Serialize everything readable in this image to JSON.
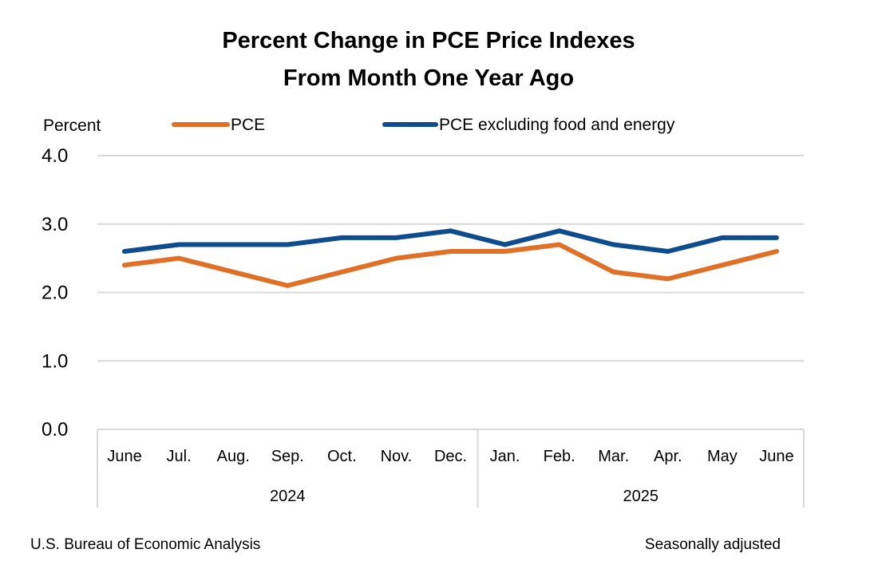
{
  "chart_data": {
    "type": "line",
    "title": [
      "Percent Change in PCE Price Indexes",
      "From Month One Year Ago"
    ],
    "ylabel": "Percent",
    "ylim": [
      0,
      4
    ],
    "yticks": [
      "0.0",
      "1.0",
      "2.0",
      "3.0",
      "4.0"
    ],
    "categories": [
      "June",
      "Jul.",
      "Aug.",
      "Sep.",
      "Oct.",
      "Nov.",
      "Dec.",
      "Jan.",
      "Feb.",
      "Mar.",
      "Apr.",
      "May",
      "June"
    ],
    "year_groups": [
      {
        "label": "2024",
        "start": 0,
        "end": 6
      },
      {
        "label": "2025",
        "start": 7,
        "end": 12
      }
    ],
    "series": [
      {
        "name": "PCE",
        "color": "#E07028",
        "values": [
          2.4,
          2.5,
          2.3,
          2.1,
          2.3,
          2.5,
          2.6,
          2.6,
          2.7,
          2.3,
          2.2,
          2.4,
          2.6
        ]
      },
      {
        "name": "PCE excluding food and energy",
        "color": "#0F4C8E",
        "values": [
          2.6,
          2.7,
          2.7,
          2.7,
          2.8,
          2.8,
          2.9,
          2.7,
          2.9,
          2.7,
          2.6,
          2.8,
          2.8
        ]
      }
    ],
    "grid": true,
    "legend": "top",
    "source": "U.S. Bureau of Economic Analysis",
    "note": "Seasonally adjusted"
  }
}
